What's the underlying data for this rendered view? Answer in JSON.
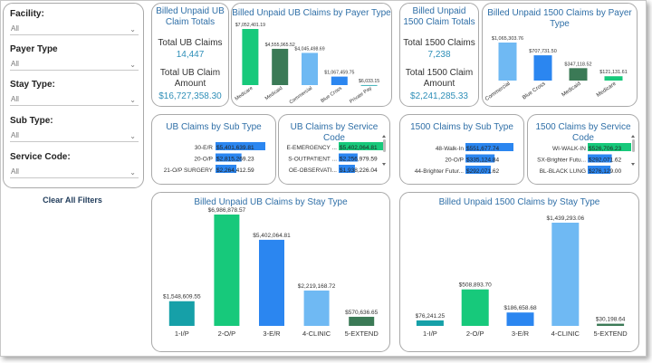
{
  "filters": {
    "items": [
      {
        "label": "Facility:",
        "value": "All"
      },
      {
        "label": "Payer Type",
        "value": "All"
      },
      {
        "label": "Stay Type:",
        "value": "All"
      },
      {
        "label": "Sub Type:",
        "value": "All"
      },
      {
        "label": "Service Code:",
        "value": "All"
      }
    ],
    "clear_label": "Clear All Filters"
  },
  "ub_totals": {
    "title": "Billed Unpaid UB Claim Totals",
    "claims_label": "Total UB Claims",
    "claims_value": "14,447",
    "amount_label": "Total UB Claim Amount",
    "amount_value": "$16,727,358.30"
  },
  "t1500_totals": {
    "title": "Billed Unpaid 1500 Claim Totals",
    "claims_label": "Total 1500 Claims",
    "claims_value": "7,238",
    "amount_label": "Total 1500 Claim Amount",
    "amount_value": "$2,241,285.33"
  },
  "colors": {
    "title": "#2f6fa7",
    "teal": "#16a0a8",
    "green": "#17c97b",
    "blue": "#2b86f0",
    "light_blue": "#6fb9f3",
    "dark_green": "#3b7a56"
  },
  "chart_data": [
    {
      "id": "ub-payer",
      "type": "bar",
      "title": "Billed Unpaid UB Claims by Payer Type",
      "categories": [
        "Medicare",
        "Medicaid",
        "Commercial",
        "Blue Cross",
        "Private Pay"
      ],
      "values": [
        7052401.19,
        4555965.52,
        4045498.69,
        1067459.75,
        6033.15
      ],
      "labels": [
        "$7,052,401.19",
        "$4,555,965.52",
        "$4,045,498.69",
        "$1,067,459.75",
        "$6,033.15"
      ],
      "colors": [
        "#17c97b",
        "#3b7a56",
        "#6fb9f3",
        "#2b86f0",
        "#16a0a8"
      ],
      "ylim": [
        0,
        7052401.19
      ]
    },
    {
      "id": "t1500-payer",
      "type": "bar",
      "title": "Billed Unpaid 1500 Claims by Payer Type",
      "categories": [
        "Commercial",
        "Blue Cross",
        "Medicaid",
        "Medicare"
      ],
      "values": [
        1065303.76,
        707731.5,
        347118.52,
        121131.61
      ],
      "labels": [
        "$1,065,303.76",
        "$707,731.50",
        "$347,118.52",
        "$121,131.61"
      ],
      "colors": [
        "#6fb9f3",
        "#2b86f0",
        "#3b7a56",
        "#17c97b"
      ],
      "ylim": [
        0,
        1065303.76
      ]
    },
    {
      "id": "ub-sub",
      "type": "bar",
      "orientation": "horizontal",
      "title": "UB Claims by Sub Type",
      "categories": [
        "30-E/R",
        "20-O/P",
        "21-O/P SURGERY"
      ],
      "values": [
        5401639.81,
        2815269.23,
        2264412.59
      ],
      "labels": [
        "$5,401,639.81",
        "$2,815,269.23",
        "$2,264,412.59"
      ],
      "colors": [
        "#2b86f0",
        "#2b86f0",
        "#2b86f0"
      ],
      "ylim": [
        0,
        5401639.81
      ]
    },
    {
      "id": "ub-service",
      "type": "bar",
      "orientation": "horizontal",
      "title": "UB Claims by Service Code",
      "categories": [
        "E-EMERGENCY ...",
        "S-OUTPATIENT ...",
        "OE-OBSERVATI..."
      ],
      "values": [
        5402064.81,
        2256979.59,
        1938226.04
      ],
      "labels": [
        "$5,402,064.81",
        "$2,256,979.59",
        "$1,938,226.04"
      ],
      "colors": [
        "#17c97b",
        "#2b86f0",
        "#2b86f0"
      ],
      "ylim": [
        0,
        5402064.81
      ]
    },
    {
      "id": "t1500-sub",
      "type": "bar",
      "orientation": "horizontal",
      "title": "1500 Claims by Sub Type",
      "categories": [
        "48-Walk-In",
        "20-O/P",
        "44-Brighter Futur..."
      ],
      "values": [
        551677.74,
        335124.84,
        292071.62
      ],
      "labels": [
        "$551,677.74",
        "$335,124.84",
        "$292,071.62"
      ],
      "colors": [
        "#2b86f0",
        "#2b86f0",
        "#2b86f0"
      ],
      "ylim": [
        0,
        551677.74
      ]
    },
    {
      "id": "t1500-service",
      "type": "bar",
      "orientation": "horizontal",
      "title": "1500 Claims by Service Code",
      "categories": [
        "WI-WALK-IN",
        "SX-Brighter Futu...",
        "BL-BLACK LUNG"
      ],
      "values": [
        526706.23,
        292071.62,
        276129.0
      ],
      "labels": [
        "$526,706.23",
        "$292,071.62",
        "$276,129.00"
      ],
      "colors": [
        "#17c97b",
        "#2b86f0",
        "#2b86f0"
      ],
      "ylim": [
        0,
        526706.23
      ]
    },
    {
      "id": "ub-stay",
      "type": "bar",
      "title": "Billed Unpaid UB Claims by Stay Type",
      "categories": [
        "1-I/P",
        "2-O/P",
        "3-E/R",
        "4-CLINIC",
        "5-EXTEND"
      ],
      "values": [
        1548609.55,
        6986878.57,
        5402064.81,
        2219168.72,
        570636.65
      ],
      "labels": [
        "$1,548,609.55",
        "$6,986,878.57",
        "$5,402,064.81",
        "$2,219,168.72",
        "$570,636.65"
      ],
      "colors": [
        "#16a0a8",
        "#17c97b",
        "#2b86f0",
        "#6fb9f3",
        "#3b7a56"
      ],
      "ylim": [
        0,
        6986878.57
      ]
    },
    {
      "id": "t1500-stay",
      "type": "bar",
      "title": "Billed Unpaid 1500 Claims by Stay Type",
      "categories": [
        "1-I/P",
        "2-O/P",
        "3-E/R",
        "4-CLINIC",
        "5-EXTEND"
      ],
      "values": [
        76241.25,
        508893.7,
        186658.68,
        1439293.06,
        30198.64
      ],
      "labels": [
        "$76,241.25",
        "$508,893.70",
        "$186,658.68",
        "$1,439,293.06",
        "$30,198.64"
      ],
      "colors": [
        "#16a0a8",
        "#17c97b",
        "#2b86f0",
        "#6fb9f3",
        "#3b7a56"
      ],
      "ylim": [
        0,
        1439293.06
      ]
    }
  ]
}
